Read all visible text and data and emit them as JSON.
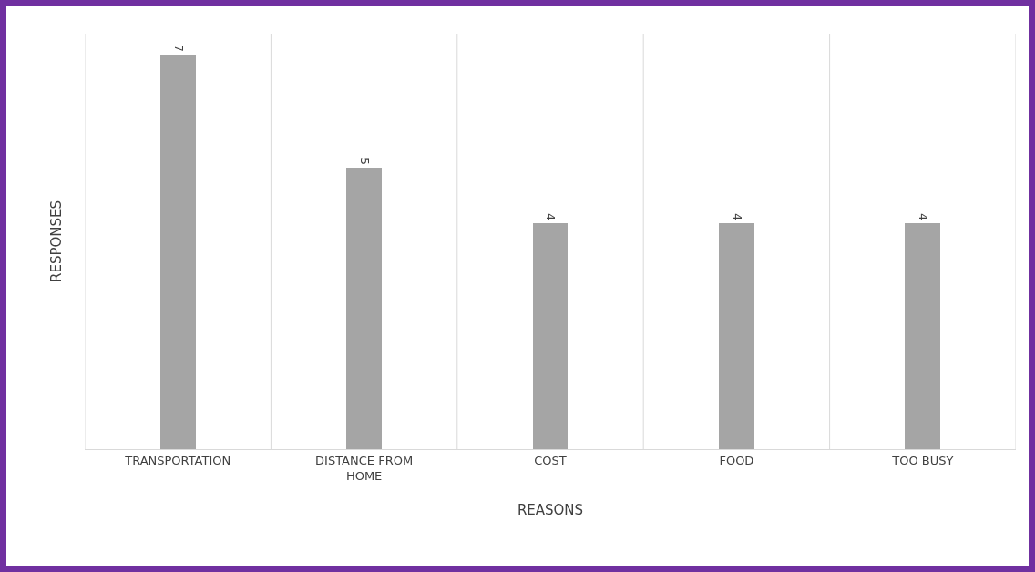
{
  "chart_data": {
    "type": "bar",
    "xlabel": "REASONS",
    "ylabel": "RESPONSES",
    "categories": [
      "TRANSPORTATION",
      "DISTANCE FROM HOME",
      "COST",
      "FOOD",
      "TOO BUSY"
    ],
    "values": [
      7,
      5,
      4,
      4,
      4
    ],
    "color": "#a5a5a5",
    "data_labels": true,
    "grid": "x",
    "tick_labels": "x"
  }
}
